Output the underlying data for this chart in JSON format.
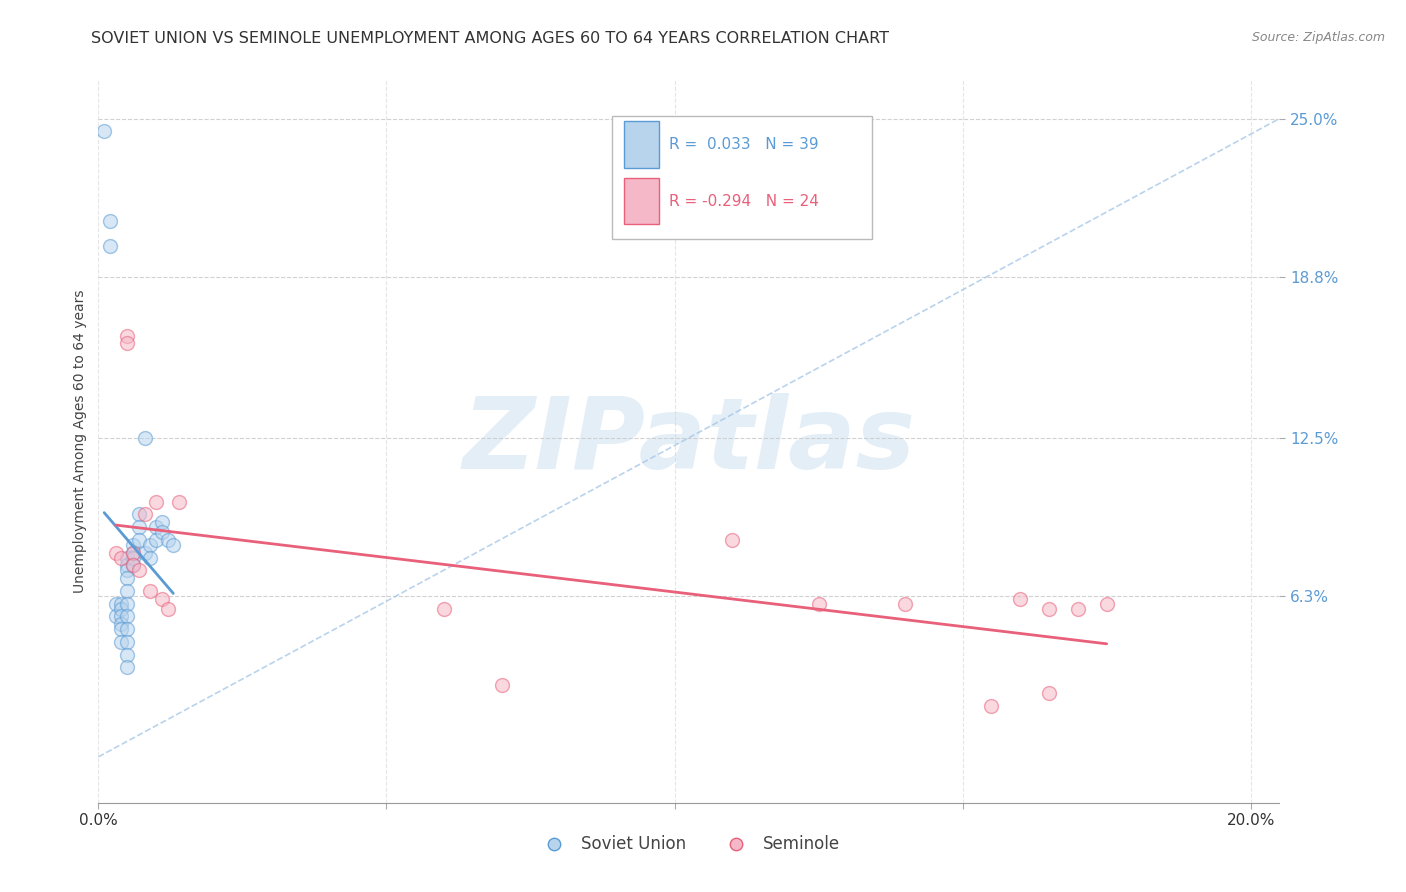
{
  "title": "SOVIET UNION VS SEMINOLE UNEMPLOYMENT AMONG AGES 60 TO 64 YEARS CORRELATION CHART",
  "source": "Source: ZipAtlas.com",
  "ylabel": "Unemployment Among Ages 60 to 64 years",
  "ytick_labels": [
    "25.0%",
    "18.8%",
    "12.5%",
    "6.3%"
  ],
  "ytick_values": [
    0.25,
    0.188,
    0.125,
    0.063
  ],
  "xtick_labels": [
    "0.0%",
    "20.0%"
  ],
  "xtick_positions": [
    0.0,
    0.2
  ],
  "xlim": [
    0.0,
    0.205
  ],
  "ylim": [
    -0.018,
    0.265
  ],
  "legend_soviet_R": "0.033",
  "legend_soviet_N": "39",
  "legend_seminole_R": "-0.294",
  "legend_seminole_N": "24",
  "soviet_x": [
    0.001,
    0.002,
    0.002,
    0.003,
    0.003,
    0.004,
    0.004,
    0.004,
    0.004,
    0.004,
    0.004,
    0.005,
    0.005,
    0.005,
    0.005,
    0.005,
    0.005,
    0.005,
    0.005,
    0.005,
    0.005,
    0.005,
    0.006,
    0.006,
    0.006,
    0.006,
    0.007,
    0.007,
    0.007,
    0.008,
    0.008,
    0.009,
    0.009,
    0.01,
    0.01,
    0.011,
    0.011,
    0.012,
    0.013
  ],
  "soviet_y": [
    0.245,
    0.21,
    0.2,
    0.06,
    0.055,
    0.06,
    0.058,
    0.055,
    0.052,
    0.05,
    0.045,
    0.078,
    0.075,
    0.073,
    0.07,
    0.065,
    0.06,
    0.055,
    0.05,
    0.045,
    0.04,
    0.035,
    0.083,
    0.08,
    0.078,
    0.075,
    0.095,
    0.09,
    0.085,
    0.125,
    0.08,
    0.083,
    0.078,
    0.09,
    0.085,
    0.092,
    0.088,
    0.085,
    0.083
  ],
  "seminole_x": [
    0.003,
    0.004,
    0.005,
    0.005,
    0.006,
    0.006,
    0.007,
    0.008,
    0.009,
    0.01,
    0.011,
    0.012,
    0.014,
    0.06,
    0.07,
    0.11,
    0.125,
    0.14,
    0.155,
    0.16,
    0.165,
    0.165,
    0.17,
    0.175
  ],
  "seminole_y": [
    0.08,
    0.078,
    0.165,
    0.162,
    0.08,
    0.075,
    0.073,
    0.095,
    0.065,
    0.1,
    0.062,
    0.058,
    0.1,
    0.058,
    0.028,
    0.085,
    0.06,
    0.06,
    0.02,
    0.062,
    0.058,
    0.025,
    0.058,
    0.06
  ],
  "background_color": "#ffffff",
  "scatter_size": 100,
  "scatter_alpha": 0.55,
  "soviet_fill_color": "#b8d4ed",
  "soviet_edge_color": "#5b9bd5",
  "seminole_fill_color": "#f5b8c8",
  "seminole_edge_color": "#e8607a",
  "soviet_line_color": "#5b9bd5",
  "seminole_line_color": "#e8607a",
  "diagonal_color": "#a8c8e8",
  "right_tick_color": "#5b9bd5",
  "title_fontsize": 11.5,
  "source_fontsize": 9,
  "axis_label_fontsize": 10,
  "tick_fontsize": 11,
  "legend_fontsize": 11,
  "watermark_color": "#c8dff0",
  "watermark_alpha": 0.5
}
